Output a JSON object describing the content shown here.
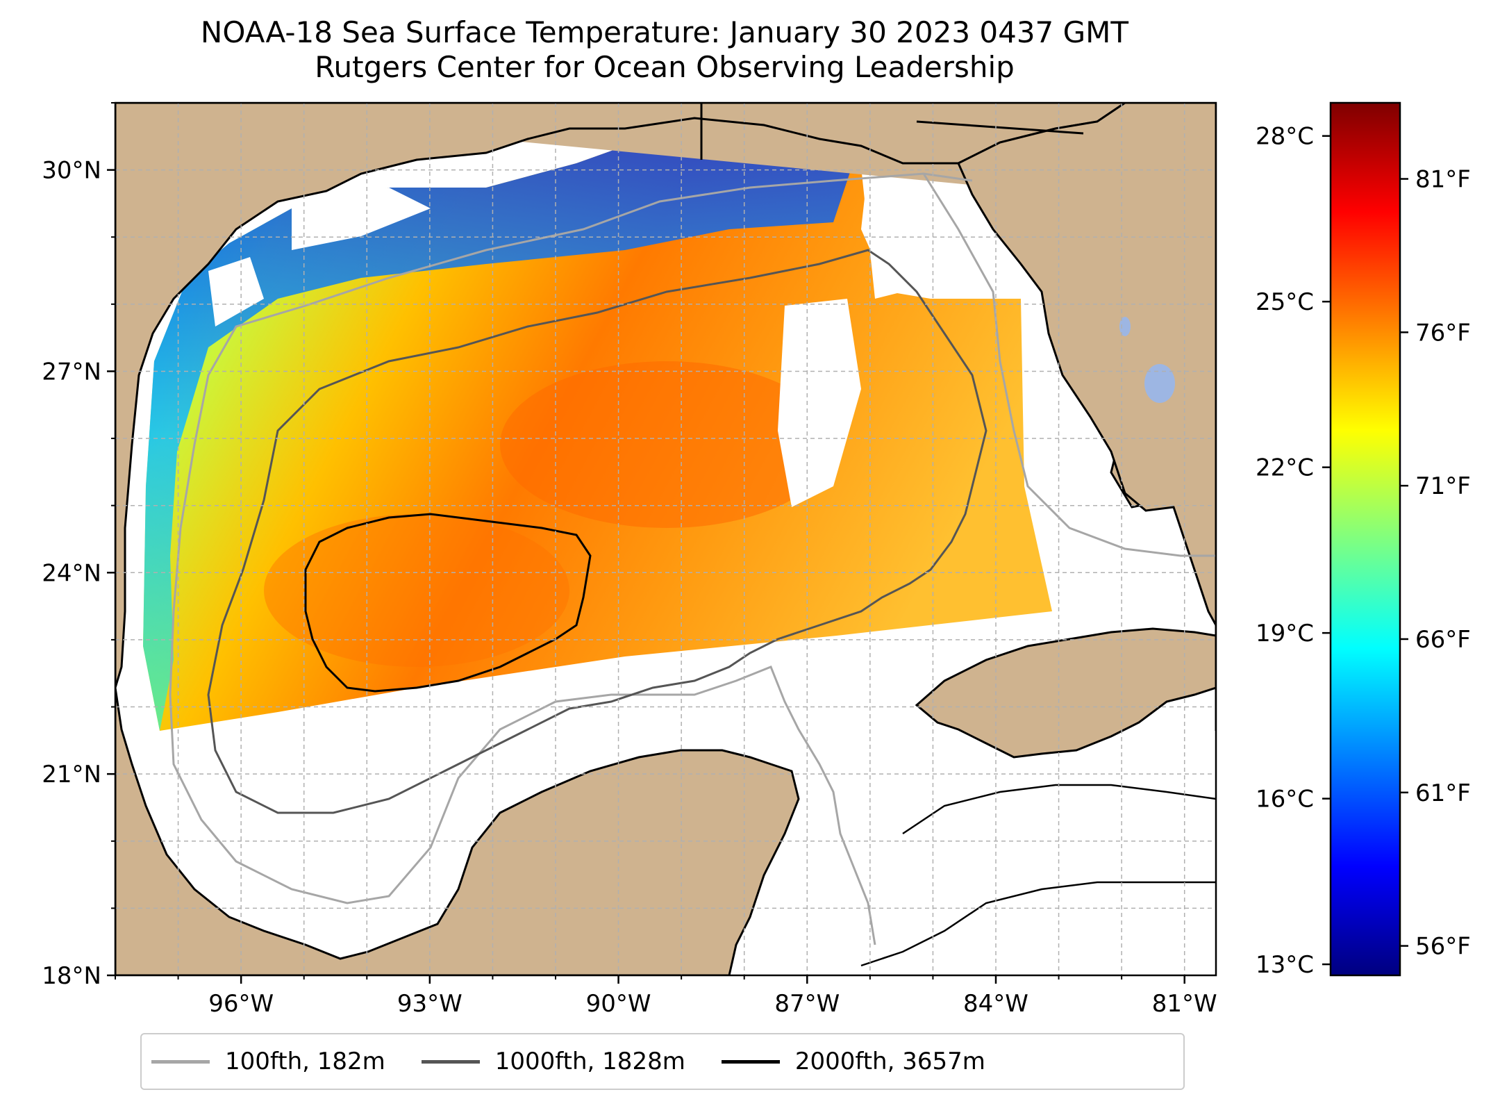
{
  "title": {
    "line1": "NOAA-18 Sea Surface Temperature: January 30 2023 0437 GMT",
    "line2": "Rutgers Center for Ocean Observing Leadership"
  },
  "map": {
    "lon_range": [
      -98,
      -80.5
    ],
    "lat_range": [
      18,
      31
    ],
    "lat_ticks": [
      {
        "value": 18,
        "label": "18°N"
      },
      {
        "value": 21,
        "label": "21°N"
      },
      {
        "value": 24,
        "label": "24°N"
      },
      {
        "value": 27,
        "label": "27°N"
      },
      {
        "value": 30,
        "label": "30°N"
      }
    ],
    "lon_ticks": [
      {
        "value": -96,
        "label": "96°W"
      },
      {
        "value": -93,
        "label": "93°W"
      },
      {
        "value": -90,
        "label": "90°W"
      },
      {
        "value": -87,
        "label": "87°W"
      },
      {
        "value": -84,
        "label": "84°W"
      },
      {
        "value": -81,
        "label": "81°W"
      }
    ],
    "grid": true,
    "colors": {
      "land": "#cfb38f",
      "lakes": "#9db6e3",
      "coast": "#000000",
      "grid": "#b0b0b0",
      "no_data": "#ffffff"
    }
  },
  "colorbar": {
    "colormap": "jet",
    "celsius_ticks": [
      {
        "value": 13,
        "label": "13°C"
      },
      {
        "value": 16,
        "label": "16°C"
      },
      {
        "value": 19,
        "label": "19°C"
      },
      {
        "value": 22,
        "label": "22°C"
      },
      {
        "value": 25,
        "label": "25°C"
      },
      {
        "value": 28,
        "label": "28°C"
      }
    ],
    "fahrenheit_ticks": [
      {
        "value": 56,
        "label": "56°F"
      },
      {
        "value": 61,
        "label": "61°F"
      },
      {
        "value": 66,
        "label": "66°F"
      },
      {
        "value": 71,
        "label": "71°F"
      },
      {
        "value": 76,
        "label": "76°F"
      },
      {
        "value": 81,
        "label": "81°F"
      }
    ],
    "range_c": [
      12.8,
      28.6
    ]
  },
  "legend": {
    "entries": [
      {
        "label": "100fth, 182m",
        "color": "#a6a6a6"
      },
      {
        "label": "1000fth, 1828m",
        "color": "#555555"
      },
      {
        "label": "2000fth, 3657m",
        "color": "#000000"
      }
    ]
  }
}
